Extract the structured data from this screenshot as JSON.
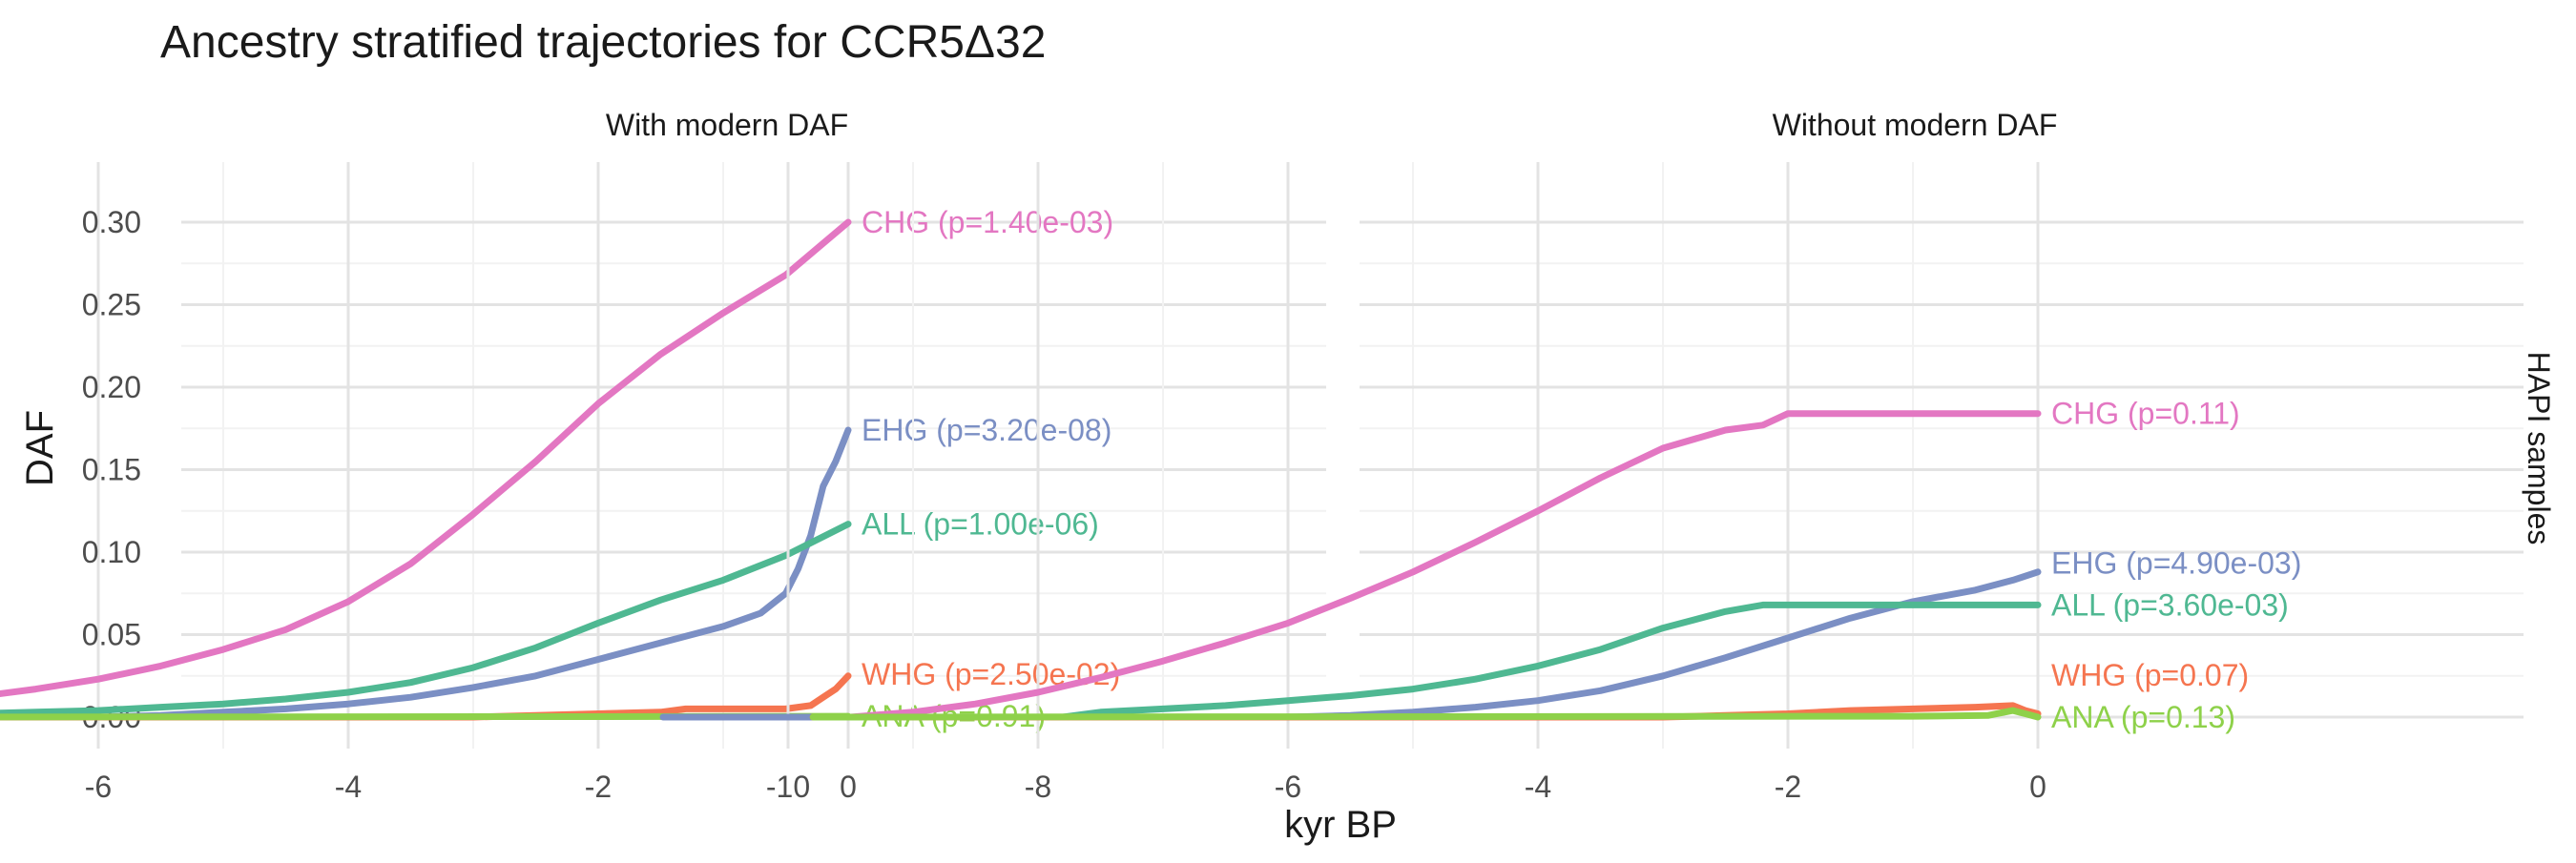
{
  "chart_data": {
    "type": "line",
    "title": "Ancestry stratified trajectories for CCR5Δ32",
    "xlabel": "kyr BP",
    "ylabel": "DAF",
    "strip_right": "HAPI samples",
    "xlim": [
      -11,
      0
    ],
    "ylim": [
      0,
      0.33
    ],
    "x_ticks": [
      -10,
      -8,
      -6,
      -4,
      -2,
      0
    ],
    "x_tick_labels": [
      "-10",
      "-8",
      "-6",
      "-4",
      "-2",
      "0"
    ],
    "y_ticks": [
      0,
      0.05,
      0.1,
      0.15,
      0.2,
      0.25,
      0.3
    ],
    "y_tick_labels": [
      "0.00",
      "0.05",
      "0.10",
      "0.15",
      "0.20",
      "0.25",
      "0.30"
    ],
    "grid": true,
    "colors": {
      "CHG": "#e377c2",
      "EHG": "#7b8fc4",
      "ALL": "#4fb892",
      "WHG": "#f57550",
      "ANA": "#8ed14a"
    },
    "panels": [
      {
        "title": "With modern DAF",
        "series": [
          {
            "name": "EHG",
            "label": "EHG (p=3.20e-08)",
            "x": [
              -11.0,
              -9.0,
              -7.0,
              -6.0,
              -5.5,
              -5.0,
              -4.5,
              -4.0,
              -3.5,
              -3.0,
              -2.5,
              -2.0,
              -1.5,
              -1.0,
              -0.7,
              -0.5,
              -0.4,
              -0.3,
              -0.2,
              -0.1,
              0.0
            ],
            "y": [
              0,
              0,
              0,
              0,
              0.001,
              0.003,
              0.005,
              0.008,
              0.012,
              0.018,
              0.025,
              0.035,
              0.045,
              0.055,
              0.063,
              0.075,
              0.09,
              0.11,
              0.14,
              0.155,
              0.174
            ]
          },
          {
            "name": "ALL",
            "label": "ALL (p=1.00e-06)",
            "x": [
              -9.5,
              -7.5,
              -7.0,
              -6.5,
              -6.0,
              -5.5,
              -5.0,
              -4.5,
              -4.0,
              -3.5,
              -3.0,
              -2.5,
              -2.0,
              -1.5,
              -1.0,
              -0.5,
              0.0
            ],
            "y": [
              0,
              0,
              0.002,
              0.003,
              0.004,
              0.006,
              0.008,
              0.011,
              0.015,
              0.021,
              0.03,
              0.042,
              0.057,
              0.071,
              0.083,
              0.098,
              0.117
            ]
          },
          {
            "name": "CHG",
            "label": "CHG (p=1.40e-03)",
            "x": [
              -9.5,
              -8.2,
              -8.0,
              -7.5,
              -7.0,
              -6.5,
              -6.0,
              -5.5,
              -5.0,
              -4.5,
              -4.0,
              -3.5,
              -3.0,
              -2.5,
              -2.0,
              -1.5,
              -1.0,
              -0.5,
              0.0
            ],
            "y": [
              0,
              0,
              0.004,
              0.008,
              0.012,
              0.017,
              0.023,
              0.031,
              0.041,
              0.053,
              0.07,
              0.093,
              0.123,
              0.155,
              0.19,
              0.22,
              0.245,
              0.268,
              0.3
            ]
          },
          {
            "name": "WHG",
            "label": "WHG (p=2.50e-02)",
            "x": [
              -9.8,
              -3.0,
              -2.5,
              -2.0,
              -1.5,
              -1.3,
              -1.0,
              -0.5,
              -0.3,
              -0.2,
              -0.1,
              0.0
            ],
            "y": [
              0,
              0,
              0.001,
              0.002,
              0.003,
              0.005,
              0.005,
              0.005,
              0.007,
              0.012,
              0.017,
              0.025
            ]
          },
          {
            "name": "ANA",
            "label": "ANA (p=0.91)",
            "x": [
              -9.5,
              -2.0,
              0.0
            ],
            "y": [
              0,
              0.0003,
              0.0005
            ]
          }
        ]
      },
      {
        "title": "Without modern DAF",
        "series": [
          {
            "name": "EHG",
            "label": "EHG (p=4.90e-03)",
            "x": [
              -11.0,
              -9.0,
              -7.0,
              -6.0,
              -5.5,
              -5.0,
              -4.5,
              -4.0,
              -3.5,
              -3.0,
              -2.5,
              -2.0,
              -1.5,
              -1.0,
              -0.5,
              -0.2,
              0.0
            ],
            "y": [
              0,
              0,
              0,
              0,
              0.001,
              0.003,
              0.006,
              0.01,
              0.016,
              0.025,
              0.036,
              0.048,
              0.06,
              0.07,
              0.077,
              0.083,
              0.088
            ]
          },
          {
            "name": "ALL",
            "label": "ALL (p=3.60e-03)",
            "x": [
              -9.5,
              -7.8,
              -7.5,
              -7.0,
              -6.5,
              -6.0,
              -5.5,
              -5.0,
              -4.5,
              -4.0,
              -3.5,
              -3.0,
              -2.5,
              -2.2,
              -2.0,
              0.0
            ],
            "y": [
              0,
              0,
              0.003,
              0.005,
              0.007,
              0.01,
              0.013,
              0.017,
              0.023,
              0.031,
              0.041,
              0.054,
              0.064,
              0.068,
              0.068,
              0.068
            ]
          },
          {
            "name": "CHG",
            "label": "CHG (p=0.11)",
            "x": [
              -9.5,
              -9.0,
              -8.5,
              -8.0,
              -7.5,
              -7.0,
              -6.5,
              -6.0,
              -5.5,
              -5.0,
              -4.5,
              -4.0,
              -3.5,
              -3.0,
              -2.5,
              -2.2,
              -2.0,
              0.0
            ],
            "y": [
              0,
              0.003,
              0.008,
              0.015,
              0.024,
              0.034,
              0.045,
              0.057,
              0.072,
              0.088,
              0.106,
              0.125,
              0.145,
              0.163,
              0.174,
              0.177,
              0.184,
              0.184
            ]
          },
          {
            "name": "WHG",
            "label": "WHG (p=0.07)",
            "x": [
              -9.8,
              -3.0,
              -2.5,
              -2.0,
              -1.5,
              -1.0,
              -0.5,
              -0.2,
              -0.1,
              0.0
            ],
            "y": [
              0,
              0,
              0.001,
              0.002,
              0.004,
              0.005,
              0.006,
              0.007,
              0.004,
              0.002
            ]
          },
          {
            "name": "ANA",
            "label": "ANA (p=0.13)",
            "x": [
              -9.8,
              -1.0,
              -0.4,
              -0.2,
              -0.1,
              0.0
            ],
            "y": [
              0,
              0.0005,
              0.001,
              0.004,
              0.002,
              0.0
            ]
          }
        ]
      }
    ]
  }
}
